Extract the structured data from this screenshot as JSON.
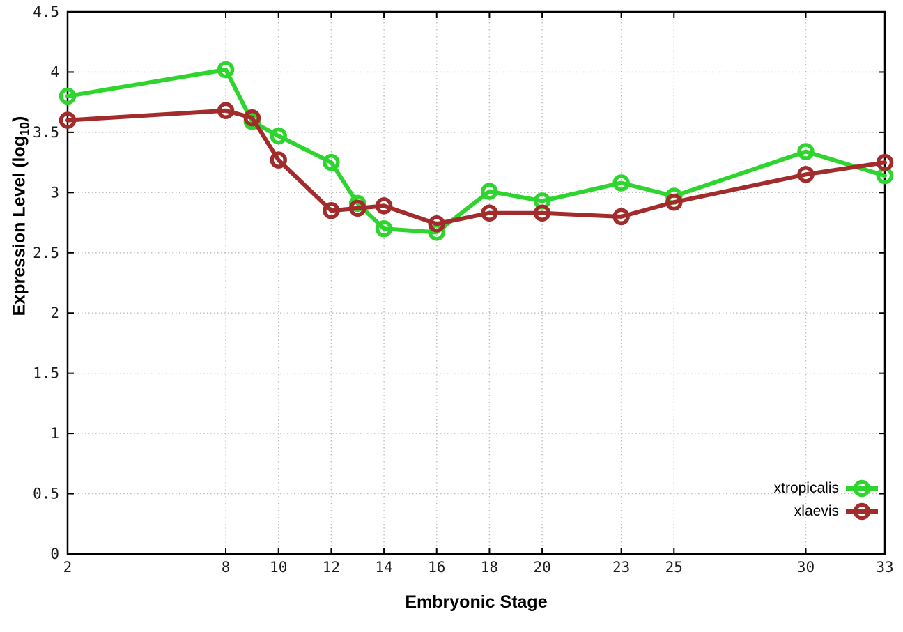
{
  "figure": {
    "xlabel": "Embryonic Stage",
    "ylabel_prefix": "Expression Level (log",
    "ylabel_sub": "10",
    "ylabel_suffix": ")"
  },
  "colors": {
    "xtropicalis_green": "#2fd52f",
    "xlaevis_red": "#a22c2c",
    "grid": "#bdbdbd",
    "axis": "#000000",
    "tick_text": "#1c1c1c"
  },
  "chart_data": {
    "type": "line",
    "title": "",
    "xlabel": "Embryonic Stage",
    "ylabel": "Expression Level (log10)",
    "xlim": [
      2,
      33
    ],
    "ylim": [
      0,
      4.5
    ],
    "grid": true,
    "grid_style": "dotted",
    "legend_position": "bottom-right-inside",
    "marker": "open-circle",
    "x_ticks": [
      2,
      8,
      10,
      12,
      14,
      16,
      18,
      20,
      23,
      25,
      30,
      33
    ],
    "x_tick_labels": [
      "2",
      "8",
      "10",
      "12",
      "14",
      "16",
      "18",
      "20",
      "23",
      "25",
      "30",
      "33"
    ],
    "y_ticks": [
      0,
      0.5,
      1,
      1.5,
      2,
      2.5,
      3,
      3.5,
      4,
      4.5
    ],
    "y_tick_labels": [
      "0",
      "0.5",
      "1",
      "1.5",
      "2",
      "2.5",
      "3",
      "3.5",
      "4",
      "4.5"
    ],
    "x": [
      2,
      8,
      9,
      10,
      12,
      13,
      14,
      16,
      18,
      20,
      23,
      25,
      30,
      33
    ],
    "series": [
      {
        "name": "xtropicalis",
        "color": "#2fd52f",
        "values": [
          3.8,
          4.02,
          3.59,
          3.47,
          3.25,
          2.91,
          2.7,
          2.67,
          3.01,
          2.93,
          3.08,
          2.97,
          3.34,
          3.14
        ]
      },
      {
        "name": "xlaevis",
        "color": "#a22c2c",
        "values": [
          3.6,
          3.68,
          3.62,
          3.27,
          2.85,
          2.87,
          2.89,
          2.74,
          2.83,
          2.83,
          2.8,
          2.92,
          3.15,
          3.25
        ]
      }
    ]
  }
}
